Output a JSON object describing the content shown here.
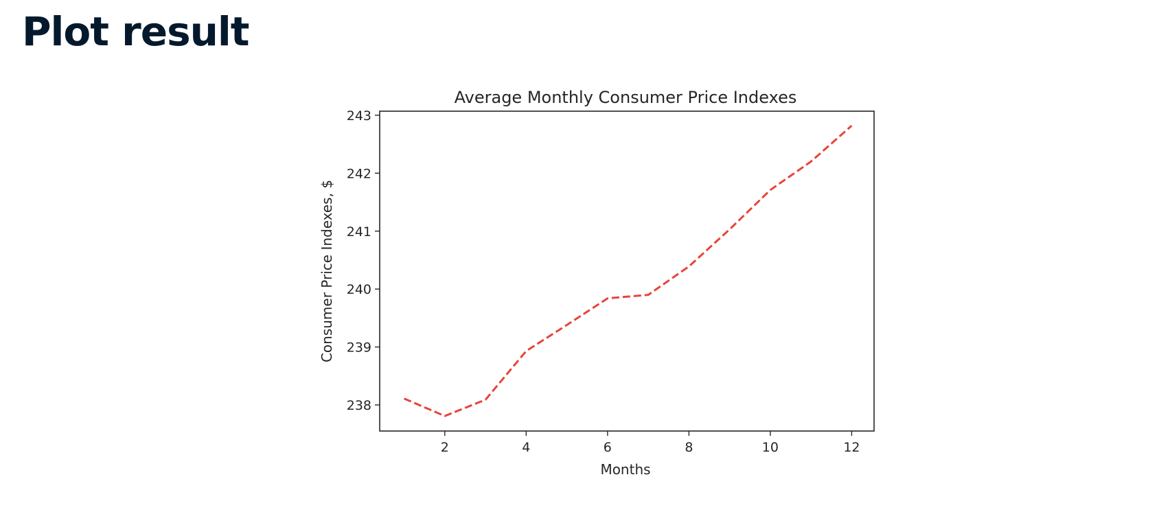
{
  "page": {
    "heading": "Plot result"
  },
  "chart_data": {
    "type": "line",
    "title": "Average Monthly Consumer Price Indexes",
    "xlabel": "Months",
    "ylabel": "Consumer Price Indexes, $",
    "xlim": [
      0.4,
      12.55
    ],
    "ylim": [
      237.55,
      243.07
    ],
    "xticks": [
      2,
      4,
      6,
      8,
      10,
      12
    ],
    "yticks": [
      238,
      239,
      240,
      241,
      242,
      243
    ],
    "grid": false,
    "series": [
      {
        "line_style": "dashed",
        "color": "#e8433a",
        "x": [
          1,
          2,
          3,
          4,
          5,
          6,
          7,
          8,
          9,
          10,
          11,
          12
        ],
        "y": [
          238.11,
          237.81,
          238.09,
          238.93,
          239.38,
          239.84,
          239.9,
          240.39,
          241.03,
          241.71,
          242.2,
          242.82
        ]
      }
    ]
  }
}
